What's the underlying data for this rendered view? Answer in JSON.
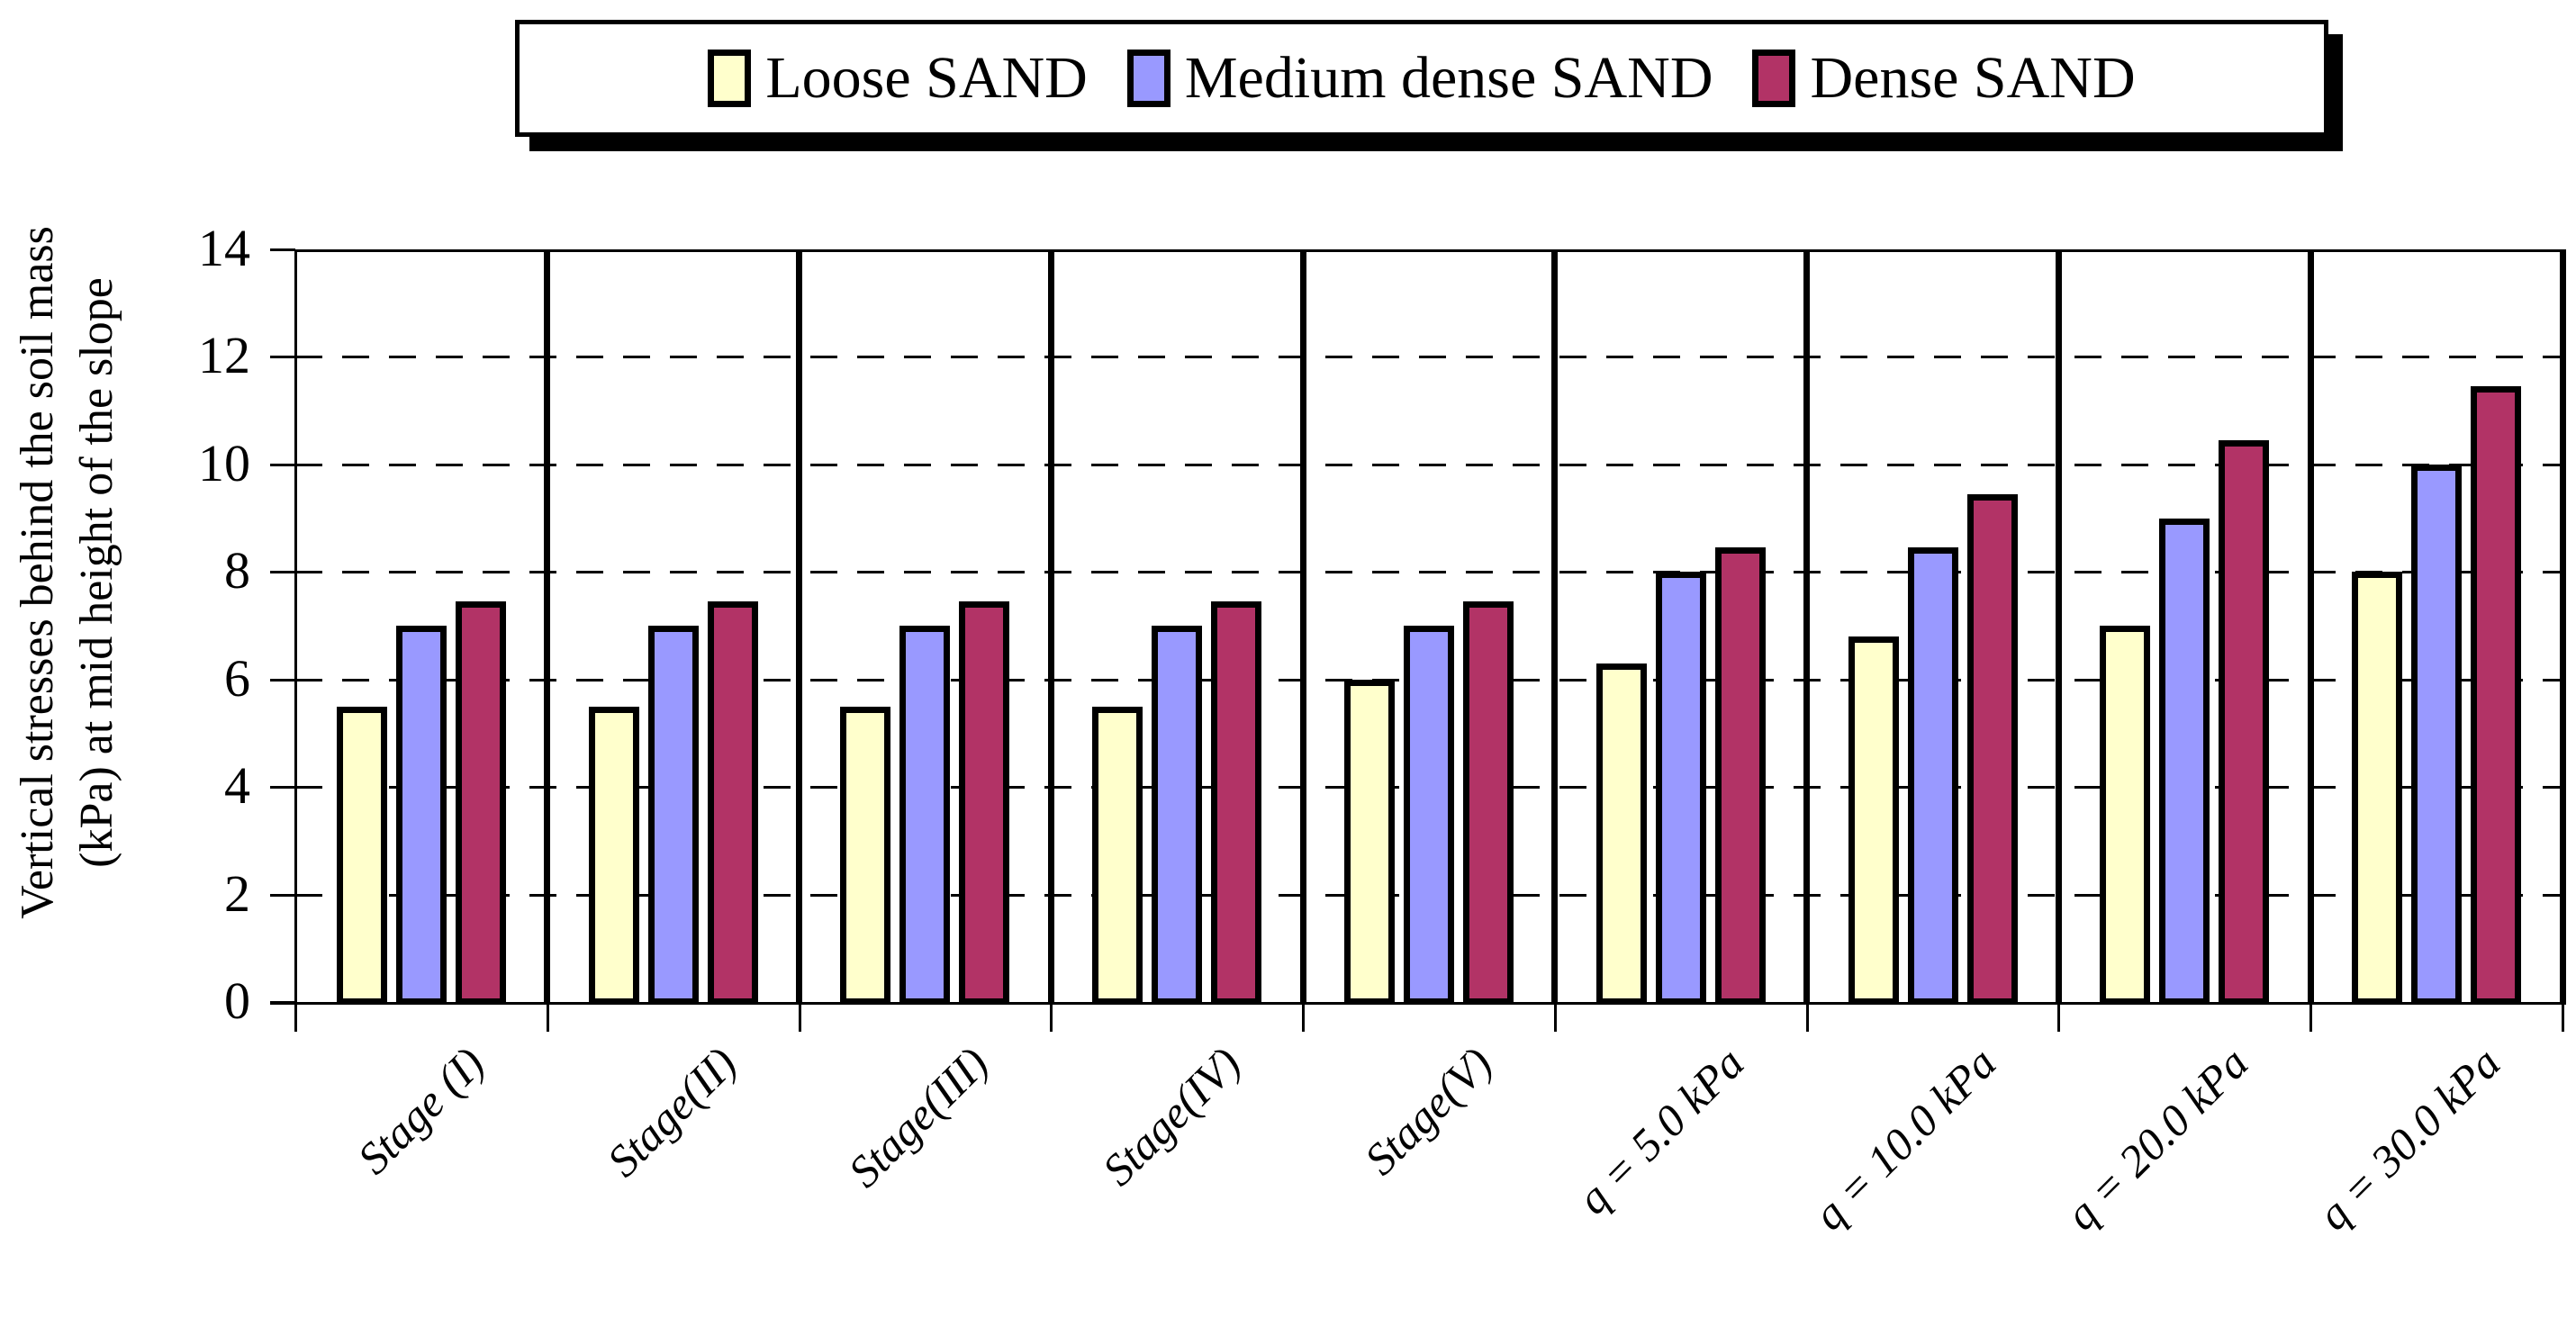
{
  "chart_data": {
    "type": "bar",
    "title": "",
    "ylabel_lines": [
      "Vertical stresses behind the soil mass",
      "(kPa) at mid height of the slope"
    ],
    "xlabel": "",
    "ylim": [
      0,
      14
    ],
    "yticks": [
      0,
      2,
      4,
      6,
      8,
      10,
      12,
      14
    ],
    "grid_values": [
      2,
      4,
      6,
      8,
      10,
      12
    ],
    "grid": "dashed-horizontal",
    "legend_position": "top",
    "categories": [
      "Stage (I)",
      "Stage(II)",
      "Stage(III)",
      "Stage(IV)",
      "Stage(V)",
      "q = 5.0 kPa",
      "q = 10.0 kPa",
      "q = 20.0 kPa",
      "q = 30.0 kPa"
    ],
    "series": [
      {
        "name": "Loose SAND",
        "color": "#FFFFCC",
        "values": [
          5.5,
          5.5,
          5.5,
          5.5,
          6.0,
          6.3,
          6.8,
          7.0,
          8.0
        ]
      },
      {
        "name": "Medium dense SAND",
        "color": "#9999FF",
        "values": [
          7.0,
          7.0,
          7.0,
          7.0,
          7.0,
          8.0,
          8.45,
          9.0,
          10.0
        ]
      },
      {
        "name": "Dense SAND",
        "color": "#B23366",
        "values": [
          7.45,
          7.45,
          7.45,
          7.45,
          7.45,
          8.45,
          9.45,
          10.45,
          11.45
        ]
      }
    ]
  },
  "legend": {
    "items": [
      {
        "label": "Loose SAND",
        "color": "#FFFFCC"
      },
      {
        "label": "Medium dense SAND",
        "color": "#9999FF"
      },
      {
        "label": "Dense SAND",
        "color": "#B23366"
      }
    ]
  },
  "colors": {
    "axis": "#000000",
    "background": "#FFFFFF"
  }
}
